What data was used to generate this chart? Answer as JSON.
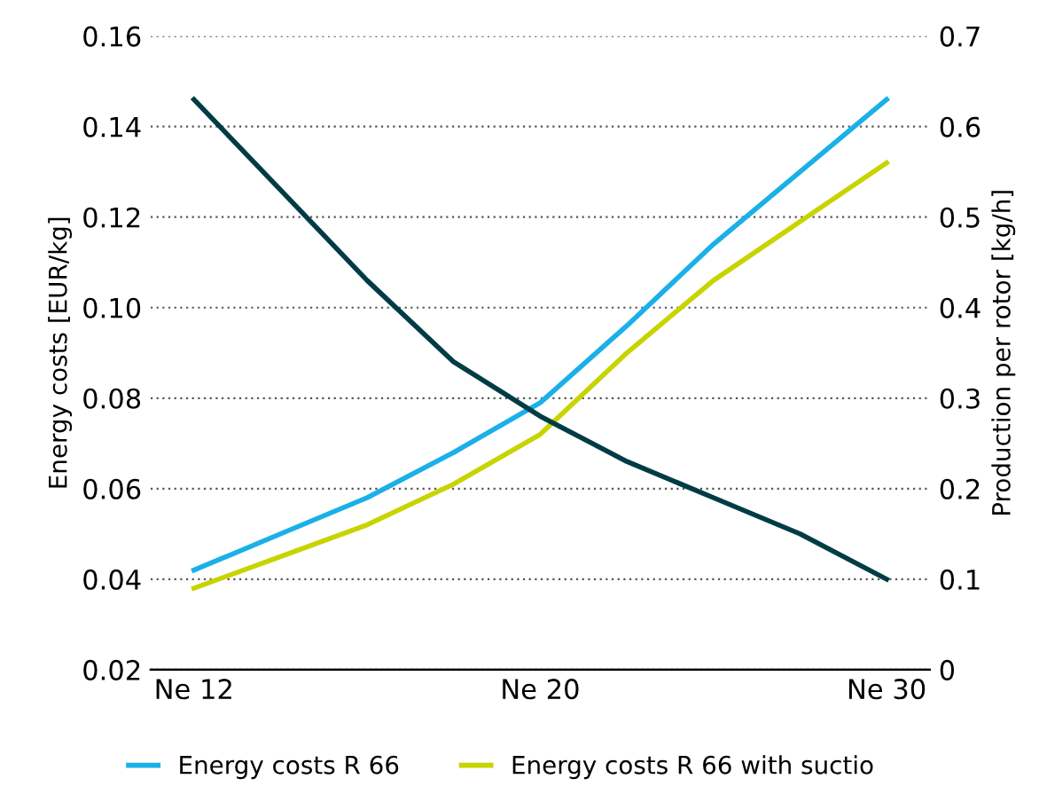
{
  "chart_data": {
    "type": "line",
    "ylabel": "Energy costs [EUR/kg]",
    "y2label": "Production per rotor [kg/h]",
    "categories": [
      "Ne 12",
      null,
      null,
      null,
      "Ne 20",
      null,
      null,
      null,
      "Ne 30"
    ],
    "series": [
      {
        "name": "Energy costs R 66",
        "color": "#1ab0e8",
        "values": [
          0.042,
          0.05,
          0.058,
          0.068,
          0.079,
          0.096,
          0.114,
          0.13,
          0.146
        ]
      },
      {
        "name": "Energy costs R 66 with suctio",
        "color": "#c8d400",
        "values": [
          0.038,
          0.045,
          0.052,
          0.061,
          0.072,
          0.09,
          0.106,
          0.119,
          0.132
        ]
      },
      {
        "color": "#003c46",
        "axis": "y2",
        "values": [
          0.63,
          0.53,
          0.43,
          0.34,
          0.28,
          0.23,
          0.19,
          0.15,
          0.1
        ]
      }
    ],
    "ylim": [
      0.02,
      0.16
    ],
    "yticks": [
      {
        "value": 0.02,
        "label": "0.02"
      },
      {
        "value": 0.04,
        "label": "0.04"
      },
      {
        "value": 0.06,
        "label": "0.06"
      },
      {
        "value": 0.08,
        "label": "0.08"
      },
      {
        "value": 0.1,
        "label": "0.10"
      },
      {
        "value": 0.12,
        "label": "0.12"
      },
      {
        "value": 0.14,
        "label": "0.14"
      },
      {
        "value": 0.16,
        "label": "0.16"
      }
    ],
    "y2lim": [
      0,
      0.7
    ],
    "y2ticks": [
      0,
      0.1,
      0.2,
      0.3,
      0.4,
      0.5,
      0.6,
      0.7
    ],
    "grid": "y",
    "legend": "bottom",
    "line_style": "solid",
    "marker": "none"
  }
}
